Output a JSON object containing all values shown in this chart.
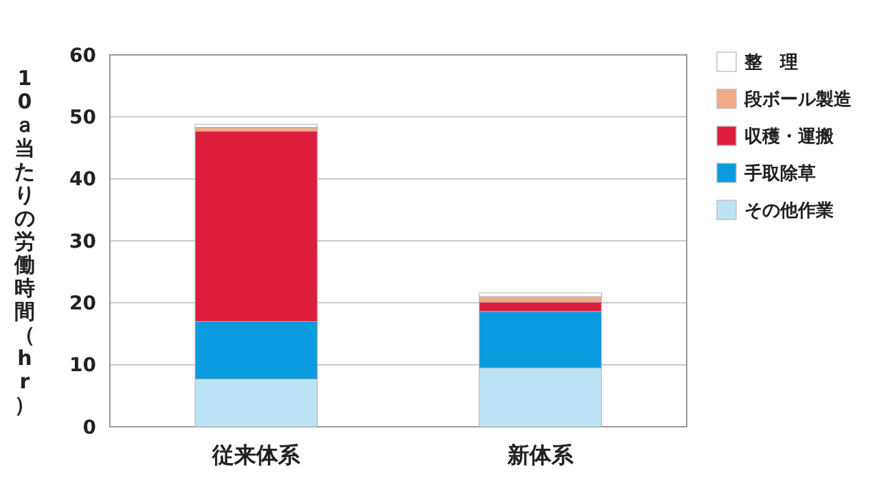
{
  "chart_data": {
    "type": "bar",
    "stacked": true,
    "ylabel": "10ａ当たりの労働時間（hr）",
    "categories": [
      "従来体系",
      "新体系"
    ],
    "series": [
      {
        "name": "その他作業",
        "color": "#bde3f7",
        "values": [
          7.7,
          9.5
        ]
      },
      {
        "name": "手取除草",
        "color": "#0a9be0",
        "values": [
          9.3,
          9.1
        ]
      },
      {
        "name": "収穫・運搬",
        "color": "#dc1e3c",
        "values": [
          30.7,
          1.5
        ]
      },
      {
        "name": "段ボール製造",
        "color": "#f0aa88",
        "values": [
          0.6,
          0.9
        ]
      },
      {
        "name": "整　理",
        "color": "#ffffff",
        "values": [
          0.5,
          0.6
        ]
      }
    ],
    "ylim": [
      0,
      60
    ],
    "yticks": [
      0,
      10,
      20,
      30,
      40,
      50,
      60
    ],
    "grid": "y",
    "legend": "right"
  }
}
